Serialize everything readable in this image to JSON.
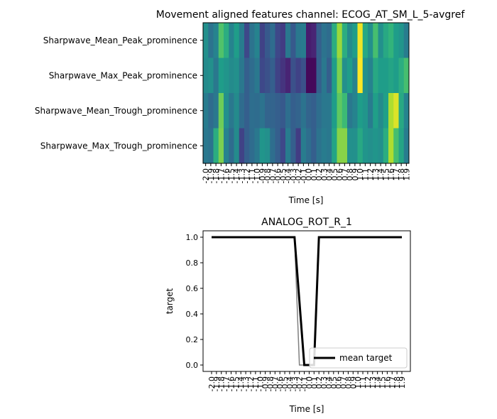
{
  "chart_data": [
    {
      "type": "heatmap",
      "title": "Movement aligned features channel: ECOG_AT_SM_L_5-avgref",
      "xlabel": "Time [s]",
      "ylabel": "",
      "rows": [
        "Sharpwave_Mean_Peak_prominence",
        "Sharpwave_Max_Peak_prominence",
        "Sharpwave_Mean_Trough_prominence",
        "Sharpwave_Max_Trough_prominence"
      ],
      "x_ticks": [
        "-2.0",
        "-1.9",
        "-1.8",
        "-1.7",
        "-1.6",
        "-1.5",
        "-1.4",
        "-1.3",
        "-1.2",
        "-1.1",
        "-1.0",
        "-0.9",
        "-0.8",
        "-0.7",
        "-0.6",
        "-0.5",
        "-0.4",
        "-0.3",
        "-0.2",
        "-0.1",
        "0.0",
        "0.1",
        "0.2",
        "0.3",
        "0.4",
        "0.5",
        "0.6",
        "0.7",
        "0.8",
        "0.9",
        "1.0",
        "1.1",
        "1.2",
        "1.3",
        "1.4",
        "1.5",
        "1.6",
        "1.7",
        "1.8",
        "1.9"
      ],
      "colormap": "viridis",
      "values": [
        [
          0.5,
          0.38,
          0.45,
          0.72,
          0.62,
          0.45,
          0.55,
          0.42,
          0.22,
          0.38,
          0.45,
          0.2,
          0.28,
          0.35,
          0.22,
          0.18,
          0.4,
          0.28,
          0.4,
          0.42,
          0.08,
          0.1,
          0.3,
          0.38,
          0.35,
          0.62,
          0.85,
          0.62,
          0.48,
          0.55,
          0.98,
          0.6,
          0.5,
          0.7,
          0.5,
          0.6,
          0.65,
          0.55,
          0.52,
          0.42
        ],
        [
          0.48,
          0.5,
          0.4,
          0.55,
          0.52,
          0.48,
          0.5,
          0.4,
          0.3,
          0.35,
          0.4,
          0.22,
          0.25,
          0.3,
          0.2,
          0.15,
          0.1,
          0.25,
          0.2,
          0.25,
          0.02,
          0.02,
          0.3,
          0.4,
          0.3,
          0.55,
          0.8,
          0.5,
          0.55,
          0.45,
          1.0,
          0.5,
          0.45,
          0.6,
          0.55,
          0.55,
          0.58,
          0.55,
          0.62,
          0.7
        ],
        [
          0.42,
          0.35,
          0.4,
          0.78,
          0.5,
          0.4,
          0.48,
          0.35,
          0.3,
          0.36,
          0.35,
          0.38,
          0.32,
          0.32,
          0.3,
          0.28,
          0.36,
          0.3,
          0.32,
          0.38,
          0.32,
          0.3,
          0.36,
          0.4,
          0.4,
          0.55,
          0.75,
          0.68,
          0.4,
          0.45,
          0.55,
          0.52,
          0.42,
          0.56,
          0.48,
          0.56,
          0.88,
          0.95,
          0.6,
          0.45
        ],
        [
          0.4,
          0.38,
          0.62,
          0.8,
          0.45,
          0.35,
          0.48,
          0.2,
          0.3,
          0.35,
          0.4,
          0.52,
          0.5,
          0.36,
          0.3,
          0.22,
          0.42,
          0.3,
          0.18,
          0.42,
          0.36,
          0.3,
          0.38,
          0.42,
          0.4,
          0.58,
          0.82,
          0.82,
          0.5,
          0.5,
          0.6,
          0.52,
          0.5,
          0.52,
          0.5,
          0.62,
          0.88,
          0.7,
          0.58,
          0.42
        ]
      ]
    },
    {
      "type": "line",
      "title": "ANALOG_ROT_R_1",
      "xlabel": "Time [s]",
      "ylabel": "target",
      "ylim": [
        -0.05,
        1.05
      ],
      "y_ticks": [
        "0.0",
        "0.2",
        "0.4",
        "0.6",
        "0.8",
        "1.0"
      ],
      "x_ticks": [
        "-2.0",
        "-1.9",
        "-1.8",
        "-1.7",
        "-1.6",
        "-1.5",
        "-1.4",
        "-1.3",
        "-1.2",
        "-1.1",
        "-1.0",
        "-0.9",
        "-0.8",
        "-0.7",
        "-0.6",
        "-0.5",
        "-0.4",
        "-0.3",
        "-0.2",
        "-0.1",
        "0.0",
        "0.1",
        "0.2",
        "0.3",
        "0.4",
        "0.5",
        "0.6",
        "0.7",
        "0.8",
        "0.9",
        "1.0",
        "1.1",
        "1.2",
        "1.3",
        "1.4",
        "1.5",
        "1.6",
        "1.7",
        "1.8",
        "1.9"
      ],
      "legend": "lower-right",
      "series": [
        {
          "name": "",
          "color": "#808080",
          "values": [
            1,
            1,
            1,
            1,
            1,
            1,
            1,
            1,
            1,
            1,
            1,
            1,
            1,
            1,
            1,
            1,
            1,
            1,
            0,
            0,
            0,
            0,
            1,
            1,
            1,
            1,
            1,
            1,
            1,
            1,
            1,
            1,
            1,
            1,
            1,
            1,
            1,
            1,
            1,
            1
          ]
        },
        {
          "name": "mean target",
          "color": "#000000",
          "values": [
            1,
            1,
            1,
            1,
            1,
            1,
            1,
            1,
            1,
            1,
            1,
            1,
            1,
            1,
            1,
            1,
            1,
            1,
            0.5,
            0,
            0,
            0,
            1,
            1,
            1,
            1,
            1,
            1,
            1,
            1,
            1,
            1,
            1,
            1,
            1,
            1,
            1,
            1,
            1,
            1
          ]
        }
      ]
    }
  ]
}
